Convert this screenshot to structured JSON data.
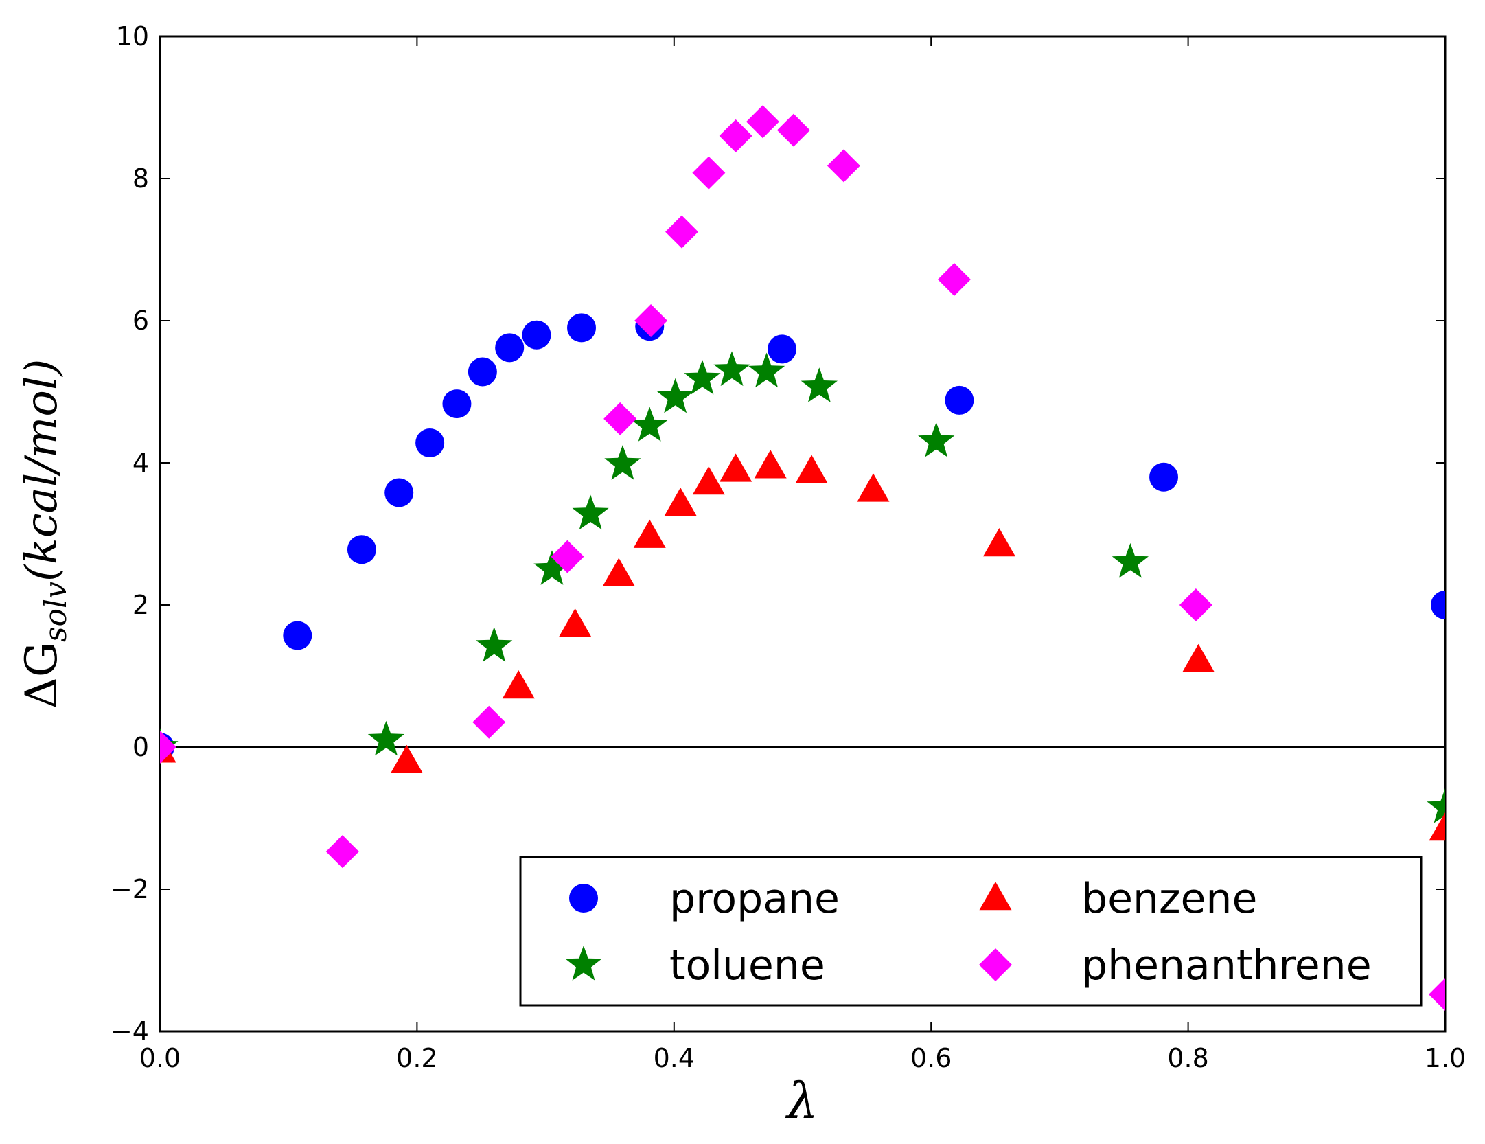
{
  "chart_data": {
    "type": "scatter",
    "title": "",
    "xlabel": "λ",
    "ylabel": "ΔG",
    "ylabel_subscript": "solv",
    "ylabel_units": "(kcal/mol)",
    "xlim": [
      0.0,
      1.0
    ],
    "ylim": [
      -4,
      10
    ],
    "xticks": [
      0.0,
      0.2,
      0.4,
      0.6,
      0.8,
      1.0
    ],
    "xtick_labels": [
      "0.0",
      "0.2",
      "0.4",
      "0.6",
      "0.8",
      "1.0"
    ],
    "yticks": [
      -4,
      -2,
      0,
      2,
      4,
      6,
      8,
      10
    ],
    "ytick_labels": [
      "−4",
      "−2",
      "0",
      "2",
      "4",
      "6",
      "8",
      "10"
    ],
    "zero_line": true,
    "grid": false,
    "legend_position": "bottom-right",
    "series": [
      {
        "name": "propane",
        "marker": "circle",
        "color": "#0000ff",
        "points": [
          [
            0.0,
            0.0
          ],
          [
            0.107,
            1.57
          ],
          [
            0.157,
            2.78
          ],
          [
            0.186,
            3.58
          ],
          [
            0.21,
            4.28
          ],
          [
            0.231,
            4.83
          ],
          [
            0.251,
            5.28
          ],
          [
            0.272,
            5.62
          ],
          [
            0.293,
            5.8
          ],
          [
            0.328,
            5.9
          ],
          [
            0.381,
            5.92
          ],
          [
            0.484,
            5.6
          ],
          [
            0.622,
            4.88
          ],
          [
            0.781,
            3.8
          ],
          [
            1.0,
            2.0
          ]
        ]
      },
      {
        "name": "toluene",
        "marker": "star",
        "color": "#008000",
        "points": [
          [
            0.0,
            0.0
          ],
          [
            0.176,
            0.1
          ],
          [
            0.26,
            1.42
          ],
          [
            0.305,
            2.5
          ],
          [
            0.335,
            3.28
          ],
          [
            0.36,
            3.98
          ],
          [
            0.381,
            4.52
          ],
          [
            0.401,
            4.92
          ],
          [
            0.422,
            5.18
          ],
          [
            0.445,
            5.3
          ],
          [
            0.472,
            5.28
          ],
          [
            0.513,
            5.07
          ],
          [
            0.604,
            4.3
          ],
          [
            0.755,
            2.6
          ],
          [
            1.0,
            -0.85
          ]
        ]
      },
      {
        "name": "benzene",
        "marker": "triangle",
        "color": "#ff0000",
        "points": [
          [
            0.0,
            -0.05
          ],
          [
            0.192,
            -0.2
          ],
          [
            0.279,
            0.85
          ],
          [
            0.323,
            1.72
          ],
          [
            0.357,
            2.43
          ],
          [
            0.381,
            2.97
          ],
          [
            0.405,
            3.42
          ],
          [
            0.427,
            3.72
          ],
          [
            0.448,
            3.9
          ],
          [
            0.475,
            3.95
          ],
          [
            0.507,
            3.88
          ],
          [
            0.555,
            3.62
          ],
          [
            0.653,
            2.85
          ],
          [
            0.808,
            1.22
          ],
          [
            1.0,
            -1.15
          ]
        ]
      },
      {
        "name": "phenanthrene",
        "marker": "diamond",
        "color": "#ff00ff",
        "points": [
          [
            0.0,
            0.0
          ],
          [
            0.142,
            -1.47
          ],
          [
            0.256,
            0.35
          ],
          [
            0.317,
            2.68
          ],
          [
            0.358,
            4.62
          ],
          [
            0.382,
            6.0
          ],
          [
            0.406,
            7.25
          ],
          [
            0.427,
            8.08
          ],
          [
            0.448,
            8.6
          ],
          [
            0.469,
            8.8
          ],
          [
            0.493,
            8.68
          ],
          [
            0.532,
            8.18
          ],
          [
            0.618,
            6.58
          ],
          [
            0.806,
            2.0
          ],
          [
            1.0,
            -3.48
          ]
        ]
      }
    ]
  }
}
